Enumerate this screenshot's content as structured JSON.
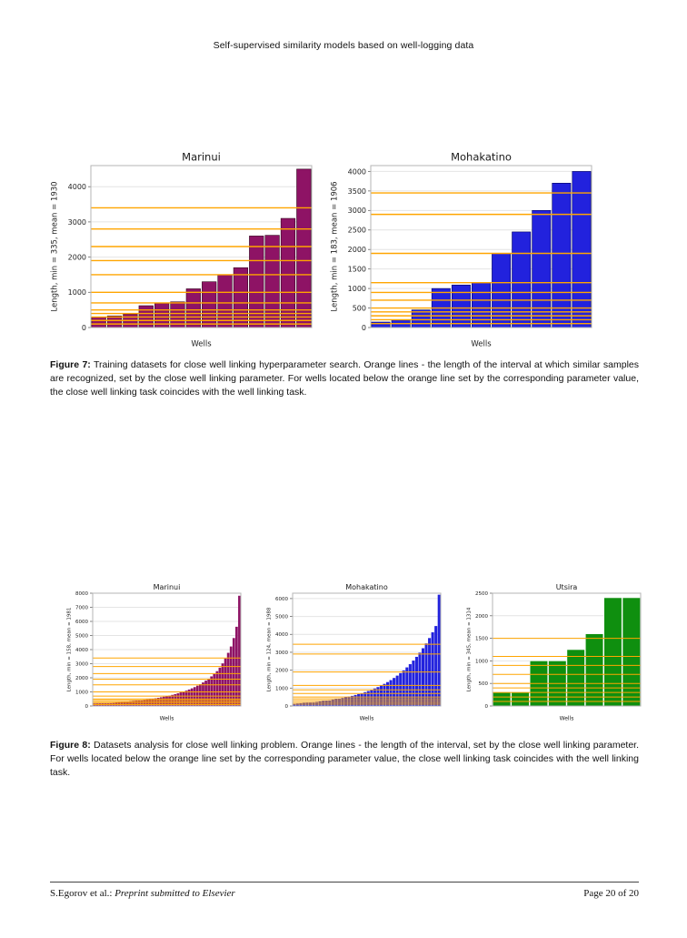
{
  "page": {
    "header_title": "Self-supervised similarity models based on well-logging data",
    "footer_left_plain": "S.Egorov et al.: ",
    "footer_left_italic": "Preprint submitted to Elsevier",
    "footer_right": "Page 20 of 20"
  },
  "figure7": {
    "label": "Figure 7:",
    "caption": "Training datasets for close well linking hyperparameter search. Orange lines - the length of the interval at which similar samples are recognized, set by the close well linking parameter. For wells located below the orange line set by the corresponding parameter value, the close well linking task coincides with the well linking task."
  },
  "figure8": {
    "label": "Figure 8:",
    "caption": "Datasets analysis for close well linking problem. Orange lines - the length of the interval, set by the close well linking parameter. For wells located below the orange line set by the corresponding parameter value, the close well linking task coincides with the well linking task."
  },
  "chart_data": [
    {
      "type": "bar",
      "figure": "7",
      "title": "Marinui",
      "xlabel": "Wells",
      "ylabel": "Length, min = 335, mean = 1930",
      "ylim": [
        0,
        4600
      ],
      "yticks": [
        0,
        1000,
        2000,
        3000,
        4000
      ],
      "values": [
        300,
        330,
        380,
        620,
        690,
        730,
        1100,
        1300,
        1500,
        1700,
        2600,
        2620,
        3100,
        4500
      ],
      "orange_lines": [
        100,
        200,
        300,
        400,
        500,
        700,
        1000,
        1500,
        1900,
        2300,
        2800,
        3400
      ],
      "bar_color": "#8e1365",
      "bar_edge": "#33071f",
      "bar_gap": 0.1,
      "line_color": "#ffa500",
      "grid": true,
      "legend": "none"
    },
    {
      "type": "bar",
      "figure": "7",
      "title": "Mohakatino",
      "xlabel": "Wells",
      "ylabel": "Length, min = 183, mean = 1906",
      "ylim": [
        0,
        4150
      ],
      "yticks": [
        0,
        500,
        1000,
        1500,
        2000,
        2500,
        3000,
        3500,
        4000
      ],
      "values": [
        140,
        190,
        450,
        1000,
        1090,
        1150,
        1900,
        2450,
        3000,
        3700,
        4000
      ],
      "orange_lines": [
        100,
        200,
        300,
        400,
        500,
        700,
        900,
        1150,
        1900,
        2900,
        3450
      ],
      "bar_color": "#2222dd",
      "bar_edge": "#000060",
      "bar_gap": 0.08,
      "line_color": "#ffa500",
      "grid": true,
      "legend": "none"
    },
    {
      "type": "bar",
      "figure": "8",
      "title": "Marinui",
      "xlabel": "Wells",
      "ylabel": "Length, min = 158, mean = 1981",
      "ylim": [
        0,
        8000
      ],
      "yticks": [
        0,
        1000,
        2000,
        3000,
        4000,
        5000,
        6000,
        7000,
        8000
      ],
      "values": [
        150,
        160,
        170,
        180,
        190,
        200,
        210,
        220,
        235,
        250,
        265,
        280,
        300,
        320,
        340,
        360,
        380,
        400,
        425,
        450,
        475,
        500,
        530,
        560,
        600,
        640,
        680,
        720,
        770,
        820,
        880,
        940,
        1000,
        1070,
        1150,
        1230,
        1320,
        1420,
        1530,
        1650,
        1780,
        1920,
        2080,
        2250,
        2450,
        2700,
        3000,
        3350,
        3750,
        4200,
        4800,
        5600,
        7800
      ],
      "orange_lines": [
        100,
        200,
        300,
        400,
        500,
        700,
        1000,
        1500,
        1900,
        2300,
        2800,
        3400
      ],
      "bar_color": "#8e1365",
      "bar_edge": "#8e1365",
      "bar_gap": 0.3,
      "line_color": "#ffa500",
      "grid": true,
      "legend": "none"
    },
    {
      "type": "bar",
      "figure": "8",
      "title": "Mohakatino",
      "xlabel": "Wells",
      "ylabel": "Length, min = 124, mean = 1988",
      "ylim": [
        0,
        6300
      ],
      "yticks": [
        0,
        1000,
        2000,
        3000,
        4000,
        5000,
        6000
      ],
      "values": [
        120,
        130,
        140,
        155,
        170,
        185,
        200,
        220,
        240,
        260,
        285,
        310,
        340,
        370,
        400,
        435,
        470,
        510,
        550,
        600,
        650,
        700,
        760,
        820,
        890,
        960,
        1040,
        1130,
        1220,
        1320,
        1430,
        1550,
        1680,
        1820,
        1970,
        2140,
        2320,
        2520,
        2730,
        2960,
        3210,
        3480,
        3780,
        4100,
        4450,
        6200
      ],
      "orange_lines": [
        100,
        200,
        300,
        400,
        500,
        700,
        900,
        1150,
        1900,
        2900,
        3450
      ],
      "bar_color": "#2222dd",
      "bar_edge": "#2222dd",
      "bar_gap": 0.3,
      "line_color": "#ffa500",
      "grid": true,
      "legend": "none"
    },
    {
      "type": "bar",
      "figure": "8",
      "title": "Utsira",
      "xlabel": "Wells",
      "ylabel": "Length, min = 345, mean = 1314",
      "ylim": [
        0,
        2500
      ],
      "yticks": [
        0,
        500,
        1000,
        1500,
        2000,
        2500
      ],
      "values": [
        300,
        300,
        1000,
        1000,
        1250,
        1600,
        2400,
        2400
      ],
      "orange_lines": [
        100,
        200,
        300,
        400,
        500,
        700,
        900,
        1100,
        1500
      ],
      "bar_color": "#0f8f0f",
      "bar_edge": "#ffffff",
      "bar_gap": 0.04,
      "line_color": "#ffa500",
      "grid": true,
      "legend": "none"
    }
  ]
}
